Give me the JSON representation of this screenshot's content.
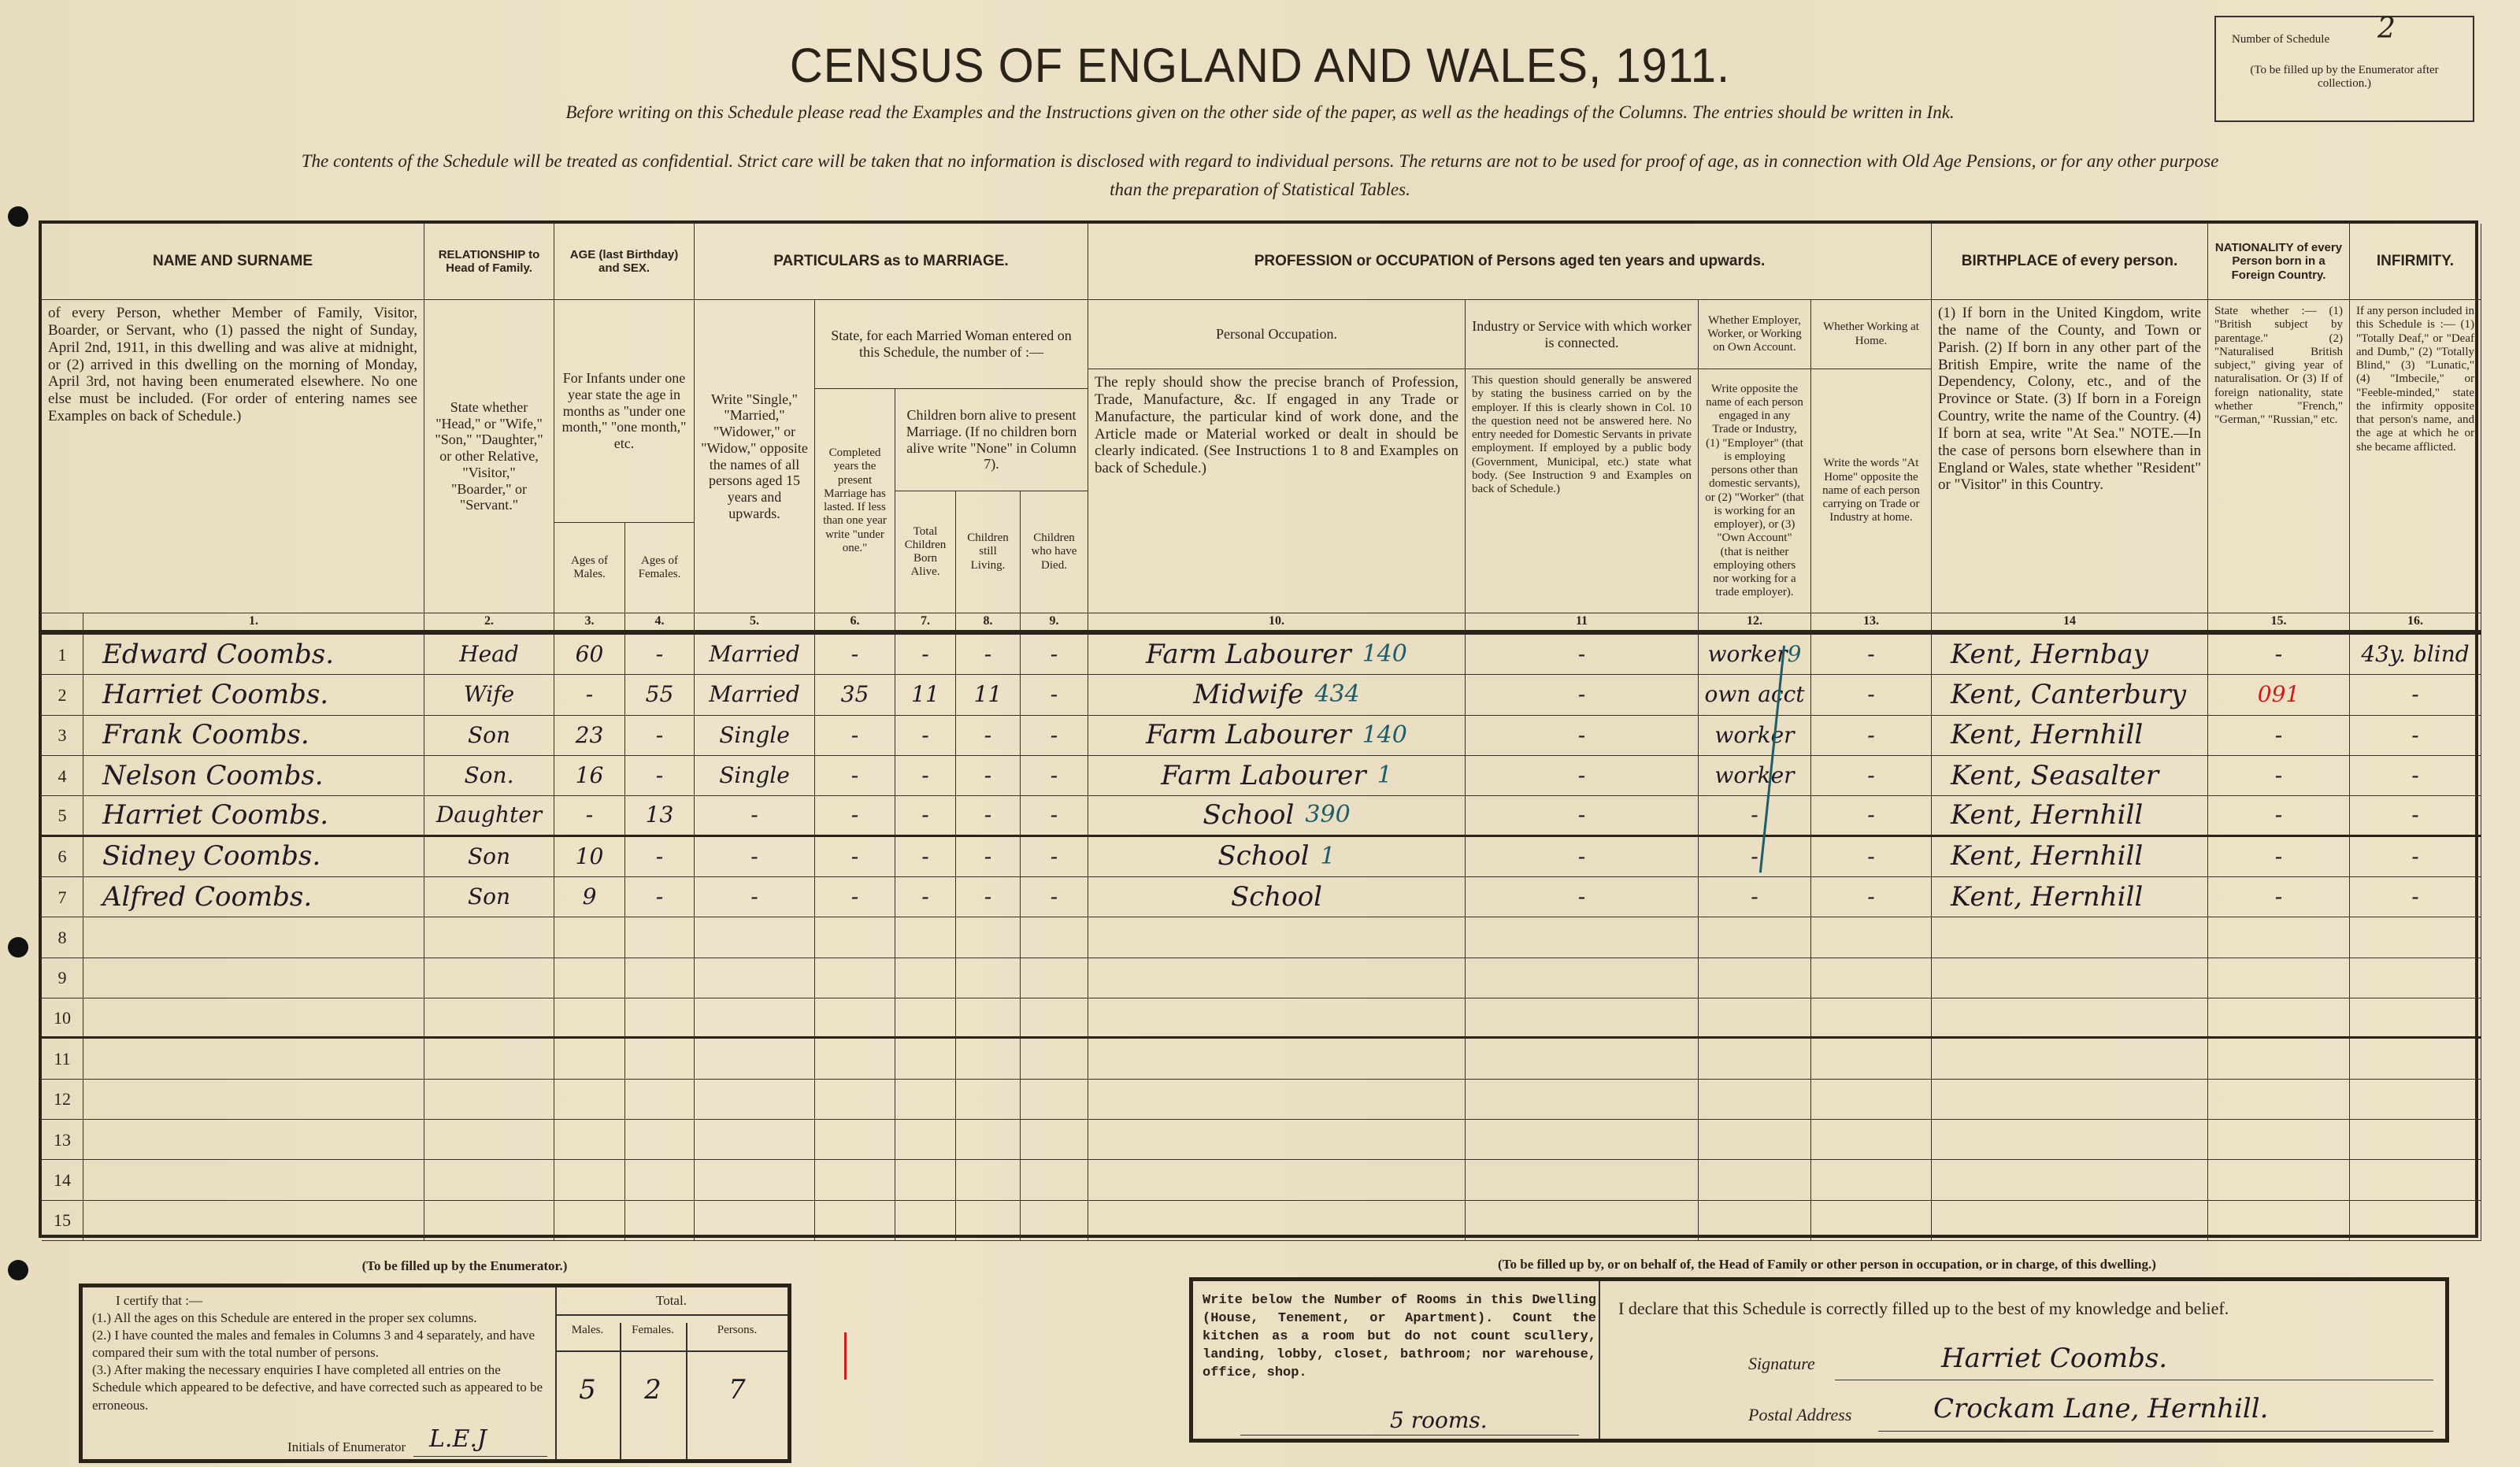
{
  "header": {
    "title": "CENSUS OF ENGLAND AND WALES, 1911.",
    "instruction_line": "Before writing on this Schedule please read the Examples and the Instructions given on the other side of the paper, as well as the headings of the Columns. The entries should be written in Ink.",
    "confidential_line_1": "The contents of the Schedule will be treated as confidential. Strict care will be taken that no information is disclosed with regard to individual persons. The returns are not to be used for proof of age, as in connection with Old Age Pensions, or for any other purpose",
    "confidential_line_2": "than the preparation of Statistical Tables.",
    "schedule_label": "Number of Schedule",
    "schedule_number": "2",
    "schedule_note": "(To be filled up by the Enumerator after collection.)"
  },
  "columns": {
    "name_title": "NAME AND SURNAME",
    "name_desc": "of every Person, whether Member of Family, Visitor, Boarder, or Servant, who (1) passed the night of Sunday, April 2nd, 1911, in this dwelling and was alive at midnight, or (2) arrived in this dwelling on the morning of Monday, April 3rd, not having been enumerated elsewhere. No one else must be included. (For order of entering names see Examples on back of Schedule.)",
    "rel_title": "RELATIONSHIP to Head of Family.",
    "rel_desc": "State whether \"Head,\" or \"Wife,\" \"Son,\" \"Daughter,\" or other Relative, \"Visitor,\" \"Boarder,\" or \"Servant.\"",
    "age_title": "AGE (last Birthday) and SEX.",
    "age_desc": "For Infants under one year state the age in months as \"under one month,\" \"one month,\" etc.",
    "age_males": "Ages of Males.",
    "age_females": "Ages of Females.",
    "marriage_title": "PARTICULARS as to MARRIAGE.",
    "marriage_desc": "Write \"Single,\" \"Married,\" \"Widower,\" or \"Widow,\" opposite the names of all persons aged 15 years and upwards.",
    "married_woman": "State, for each Married Woman entered on this Schedule, the number of :—",
    "years_married": "Completed years the present Marriage has lasted. If less than one year write \"under one.\"",
    "children_title": "Children born alive to present Marriage. (If no children born alive write \"None\" in Column 7).",
    "children_total": "Total Children Born Alive.",
    "children_living": "Children still Living.",
    "children_died": "Children who have Died.",
    "prof_title": "PROFESSION or OCCUPATION of Persons aged ten years and upwards.",
    "personal_occ": "Personal Occupation.",
    "personal_occ_desc": "The reply should show the precise branch of Profession, Trade, Manufacture, &c. If engaged in any Trade or Manufacture, the particular kind of work done, and the Article made or Material worked or dealt in should be clearly indicated. (See Instructions 1 to 8 and Examples on back of Schedule.)",
    "industry": "Industry or Service with which worker is connected.",
    "industry_desc": "This question should generally be answered by stating the business carried on by the employer. If this is clearly shown in Col. 10 the question need not be answered here. No entry needed for Domestic Servants in private employment. If employed by a public body (Government, Municipal, etc.) state what body. (See Instruction 9 and Examples on back of Schedule.)",
    "employer": "Whether Employer, Worker, or Working on Own Account.",
    "employer_desc": "Write opposite the name of each person engaged in any Trade or Industry, (1) \"Employer\" (that is employing persons other than domestic servants), or (2) \"Worker\" (that is working for an employer), or (3) \"Own Account\" (that is neither employing others nor working for a trade employer).",
    "at_home": "Whether Working at Home.",
    "at_home_desc": "Write the words \"At Home\" opposite the name of each person carrying on Trade or Industry at home.",
    "birth_title": "BIRTHPLACE of every person.",
    "birth_desc": "(1) If born in the United Kingdom, write the name of the County, and Town or Parish. (2) If born in any other part of the British Empire, write the name of the Dependency, Colony, etc., and of the Province or State. (3) If born in a Foreign Country, write the name of the Country. (4) If born at sea, write \"At Sea.\" NOTE.—In the case of persons born elsewhere than in England or Wales, state whether \"Resident\" or \"Visitor\" in this Country.",
    "nat_title": "NATIONALITY of every Person born in a Foreign Country.",
    "nat_desc": "State whether :— (1) \"British subject by parentage.\" (2) \"Naturalised British subject,\" giving year of naturalisation. Or (3) If of foreign nationality, state whether \"French,\" \"German,\" \"Russian,\" etc.",
    "inf_title": "INFIRMITY.",
    "inf_desc": "If any person included in this Schedule is :— (1) \"Totally Deaf,\" or \"Deaf and Dumb,\" (2) \"Totally Blind,\" (3) \"Lunatic,\" (4) \"Imbecile,\" or \"Feeble-minded,\" state the infirmity opposite that person's name, and the age at which he or she became afflicted.",
    "numbers": [
      "1.",
      "2.",
      "3.",
      "4.",
      "5.",
      "6.",
      "7.",
      "8.",
      "9.",
      "10.",
      "11",
      "12.",
      "13.",
      "14",
      "15.",
      "16."
    ]
  },
  "rows": [
    {
      "n": "1",
      "name": "Edward Coombs.",
      "rel": "Head",
      "m": "60",
      "f": "-",
      "mar": "Married",
      "yrs": "-",
      "born": "-",
      "living": "-",
      "died": "-",
      "occ": "Farm Labourer",
      "code": "140",
      "ind": "-",
      "emp": "worker",
      "emp_code": "9",
      "home": "-",
      "birth": "Kent, Hernbay",
      "nat": "-",
      "inf": "43y. blind"
    },
    {
      "n": "2",
      "name": "Harriet Coombs.",
      "rel": "Wife",
      "m": "-",
      "f": "55",
      "mar": "Married",
      "yrs": "35",
      "born": "11",
      "living": "11",
      "died": "-",
      "occ": "Midwife",
      "code": "434",
      "ind": "-",
      "emp": "own acct",
      "emp_code": "",
      "home": "-",
      "birth": "Kent, Canterbury",
      "nat": "091",
      "inf": "-"
    },
    {
      "n": "3",
      "name": "Frank Coombs.",
      "rel": "Son",
      "m": "23",
      "f": "-",
      "mar": "Single",
      "yrs": "-",
      "born": "-",
      "living": "-",
      "died": "-",
      "occ": "Farm Labourer",
      "code": "140",
      "ind": "-",
      "emp": "worker",
      "emp_code": "",
      "home": "-",
      "birth": "Kent, Hernhill",
      "nat": "-",
      "inf": "-"
    },
    {
      "n": "4",
      "name": "Nelson Coombs.",
      "rel": "Son.",
      "m": "16",
      "f": "-",
      "mar": "Single",
      "yrs": "-",
      "born": "-",
      "living": "-",
      "died": "-",
      "occ": "Farm Labourer",
      "code": "1",
      "ind": "-",
      "emp": "worker",
      "emp_code": "",
      "home": "-",
      "birth": "Kent, Seasalter",
      "nat": "-",
      "inf": "-"
    },
    {
      "n": "5",
      "name": "Harriet Coombs.",
      "rel": "Daughter",
      "m": "-",
      "f": "13",
      "mar": "-",
      "yrs": "-",
      "born": "-",
      "living": "-",
      "died": "-",
      "occ": "School",
      "code": "390",
      "ind": "-",
      "emp": "-",
      "emp_code": "",
      "home": "-",
      "birth": "Kent, Hernhill",
      "nat": "-",
      "inf": "-"
    },
    {
      "n": "6",
      "name": "Sidney Coombs.",
      "rel": "Son",
      "m": "10",
      "f": "-",
      "mar": "-",
      "yrs": "-",
      "born": "-",
      "living": "-",
      "died": "-",
      "occ": "School",
      "code": "1",
      "ind": "-",
      "emp": "-",
      "emp_code": "",
      "home": "-",
      "birth": "Kent, Hernhill",
      "nat": "-",
      "inf": "-"
    },
    {
      "n": "7",
      "name": "Alfred Coombs.",
      "rel": "Son",
      "m": "9",
      "f": "-",
      "mar": "-",
      "yrs": "-",
      "born": "-",
      "living": "-",
      "died": "-",
      "occ": "School",
      "code": "",
      "ind": "-",
      "emp": "-",
      "emp_code": "",
      "home": "-",
      "birth": "Kent, Hernhill",
      "nat": "-",
      "inf": "-"
    },
    {
      "n": "8"
    },
    {
      "n": "9"
    },
    {
      "n": "10"
    },
    {
      "n": "11"
    },
    {
      "n": "12"
    },
    {
      "n": "13"
    },
    {
      "n": "14"
    },
    {
      "n": "15"
    }
  ],
  "enumerator": {
    "heading": "(To be filled up by the Enumerator.)",
    "certify": "I certify that :—",
    "item1": "(1.) All the ages on this Schedule are entered in the proper sex columns.",
    "item2": "(2.) I have counted the males and females in Columns 3 and 4 separately, and have compared their sum with the total number of persons.",
    "item3": "(3.) After making the necessary enquiries I have completed all entries on the Schedule which appeared to be defective, and have corrected such as appeared to be erroneous.",
    "initials_label": "Initials of Enumerator",
    "initials": "L.E.J",
    "total_label": "Total.",
    "males_label": "Males.",
    "females_label": "Females.",
    "persons_label": "Persons.",
    "males": "5",
    "females": "2",
    "persons": "7"
  },
  "household": {
    "heading": "(To be filled up by, or on behalf of, the Head of Family or other person in occupation, or in charge, of this dwelling.)",
    "rooms_instruction": "Write below the Number of Rooms in this Dwelling (House, Tenement, or Apartment). Count the kitchen as a room but do not count scullery, landing, lobby, closet, bathroom; nor warehouse, office, shop.",
    "rooms": "5 rooms.",
    "declaration": "I declare that this Schedule is correctly filled up to the best of my knowledge and belief.",
    "signature_label": "Signature",
    "signature": "Harriet Coombs.",
    "address_label": "Postal Address",
    "address": "Crockam Lane, Hernhill."
  },
  "colors": {
    "paper": "#eee3c8",
    "ink": "#1f1a22",
    "code_ink": "#1d5d6a",
    "check_ink": "#d21a1a"
  }
}
